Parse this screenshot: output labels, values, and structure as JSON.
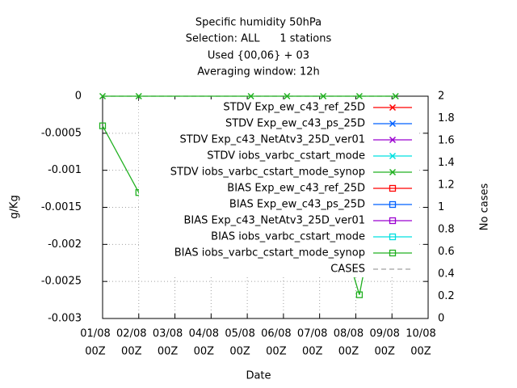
{
  "chart_data": {
    "type": "line",
    "title": [
      "Specific humidity 50hPa",
      "Selection: ALL      1 stations",
      "Used {00,06} + 03",
      "Averaging window: 12h"
    ],
    "xlabel": "Date",
    "ylabel": "g/Kg",
    "y2label": "No cases",
    "x": [
      0,
      1,
      4.1,
      5.1,
      6.1,
      7.1,
      8.1
    ],
    "xlim": [
      0,
      9
    ],
    "xticks": [
      {
        "value": 0,
        "label": "01/08"
      },
      {
        "value": 1,
        "label": "02/08"
      },
      {
        "value": 2,
        "label": "03/08"
      },
      {
        "value": 3,
        "label": "04/08"
      },
      {
        "value": 4,
        "label": "05/08"
      },
      {
        "value": 5,
        "label": "06/08"
      },
      {
        "value": 6,
        "label": "07/08"
      },
      {
        "value": 7,
        "label": "08/08"
      },
      {
        "value": 8,
        "label": "09/08"
      },
      {
        "value": 9,
        "label": "10/08"
      }
    ],
    "xticks_second_line": [
      "00Z",
      "00Z",
      "00Z",
      "00Z",
      "00Z",
      "00Z",
      "00Z",
      "00Z",
      "00Z",
      "00Z"
    ],
    "ylim": [
      -0.003,
      0
    ],
    "yticks": [
      0,
      -0.0005,
      -0.001,
      -0.0015,
      -0.002,
      -0.0025,
      -0.003
    ],
    "y2lim": [
      0,
      2
    ],
    "y2ticks": [
      0,
      0.2,
      0.4,
      0.6,
      0.8,
      1,
      1.2,
      1.4,
      1.6,
      1.8,
      2
    ],
    "grid": true,
    "legend": "top-right",
    "series": [
      {
        "name": "STDV Exp_ew_c43_ref_25D",
        "color": "#ff0000",
        "marker": "x",
        "values": [
          null,
          null,
          null,
          null,
          null,
          null,
          null
        ]
      },
      {
        "name": "STDV Exp_ew_c43_ps_25D",
        "color": "#0060ff",
        "marker": "x",
        "values": [
          null,
          null,
          null,
          null,
          null,
          null,
          null
        ]
      },
      {
        "name": "STDV Exp_c43_NetAtv3_25D_ver01",
        "color": "#9a00d0",
        "marker": "x",
        "values": [
          null,
          null,
          null,
          null,
          null,
          null,
          null
        ]
      },
      {
        "name": "STDV iobs_varbc_cstart_mode",
        "color": "#00e0e0",
        "marker": "x",
        "values": [
          null,
          null,
          null,
          null,
          null,
          null,
          null
        ]
      },
      {
        "name": "STDV iobs_varbc_cstart_mode_synop",
        "color": "#20b020",
        "marker": "x",
        "values": [
          0,
          0,
          0,
          0,
          0,
          0,
          0
        ]
      },
      {
        "name": "BIAS Exp_ew_c43_ref_25D",
        "color": "#ff0000",
        "marker": "square",
        "values": [
          null,
          null,
          null,
          null,
          null,
          null,
          null
        ]
      },
      {
        "name": "BIAS Exp_ew_c43_ps_25D",
        "color": "#0060ff",
        "marker": "square",
        "values": [
          null,
          null,
          null,
          null,
          null,
          null,
          null
        ]
      },
      {
        "name": "BIAS Exp_c43_NetAtv3_25D_ver01",
        "color": "#9a00d0",
        "marker": "square",
        "values": [
          null,
          null,
          null,
          null,
          null,
          null,
          null
        ]
      },
      {
        "name": "BIAS iobs_varbc_cstart_mode",
        "color": "#00e0e0",
        "marker": "square",
        "values": [
          null,
          null,
          null,
          null,
          null,
          null,
          null
        ]
      },
      {
        "name": "BIAS iobs_varbc_cstart_mode_synop",
        "color": "#20b020",
        "marker": "square",
        "values": [
          -0.0004,
          -0.0013,
          -0.00015,
          -0.00038,
          -0.00105,
          -0.00268,
          -0.00015
        ]
      },
      {
        "name": "CASES",
        "color": "#a0a0a0",
        "marker": "none",
        "dashed": true,
        "axis": "y2",
        "values": [
          2,
          2,
          2,
          2,
          2,
          2,
          2
        ]
      }
    ]
  }
}
